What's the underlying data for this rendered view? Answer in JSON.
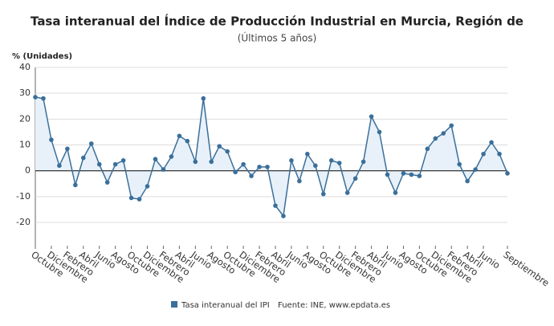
{
  "chart_data": {
    "type": "line",
    "title": "Tasa interanual del Índice de Producción Industrial en Murcia, Región de",
    "subtitle": "(Últimos 5 años)",
    "y_label": "% (Unidades)",
    "source": "Fuente: INE, www.epdata.es",
    "categories": [
      "Octubre",
      null,
      "Diciembre",
      null,
      "Febrero",
      null,
      "Abril",
      null,
      "Junio",
      null,
      "Agosto",
      null,
      "Octubre",
      null,
      "Diciembre",
      null,
      "Febrero",
      null,
      "Abril",
      null,
      "Junio",
      null,
      "Agosto",
      null,
      "Octubre",
      null,
      "Diciembre",
      null,
      "Febrero",
      null,
      "Abril",
      null,
      "Junio",
      null,
      "Agosto",
      null,
      "Octubre",
      null,
      "Diciembre",
      null,
      "Febrero",
      null,
      "Abril",
      null,
      "Junio",
      null,
      "Agosto",
      null,
      "Octubre",
      null,
      "Diciembre",
      null,
      "Febrero",
      null,
      "Abril",
      null,
      "Junio",
      null,
      null,
      "Septiembre"
    ],
    "series": [
      {
        "name": "Tasa interanual del IPI",
        "color": "#3a6f9a",
        "values": [
          28.5,
          28,
          12,
          2,
          8.5,
          -5.5,
          5,
          10.5,
          2.5,
          -4.5,
          2.5,
          4,
          -10.5,
          -11,
          -6,
          4.5,
          0.5,
          5.5,
          13.5,
          11.5,
          3.5,
          28,
          3.5,
          9.5,
          7.5,
          -0.5,
          2.5,
          -2,
          1.5,
          1.5,
          -13.5,
          -17.5,
          4,
          -4,
          6.5,
          2,
          -9,
          4,
          3,
          -8.5,
          -3,
          3.5,
          21,
          15,
          -1.5,
          -8.5,
          -1,
          -1.5,
          -2,
          8.5,
          12.5,
          14.5,
          17.5,
          2.5,
          -4,
          0.5,
          6.5,
          11,
          6.5,
          -1
        ]
      }
    ],
    "ylim": [
      -29,
      40
    ],
    "yticks": [
      -20,
      -10,
      0,
      10,
      20,
      30,
      40
    ],
    "grid": true
  }
}
